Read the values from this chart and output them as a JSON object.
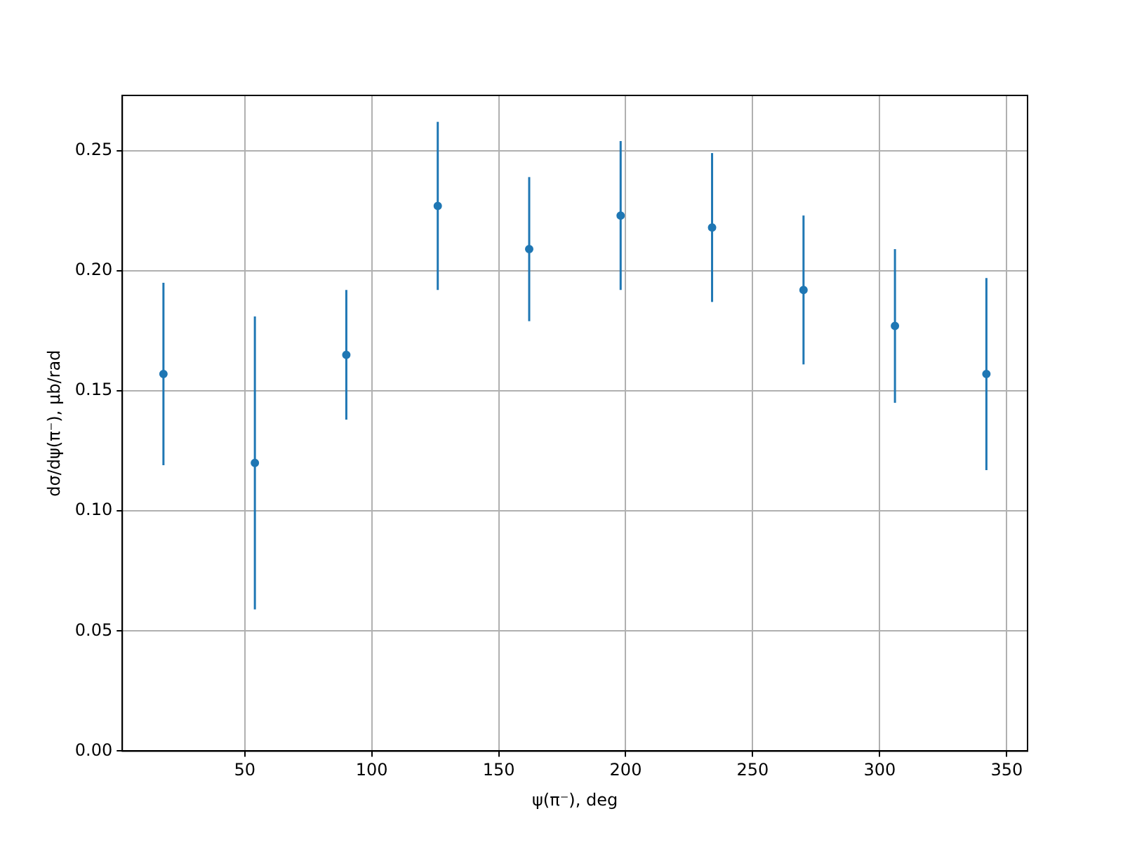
{
  "chart_data": {
    "type": "scatter",
    "xlabel": "ψ(π⁻), deg",
    "ylabel": "dσ/dψ(π⁻), μb/rad",
    "x": [
      18,
      54,
      90,
      126,
      162,
      198,
      234,
      270,
      306,
      342
    ],
    "series": [
      {
        "color": "#1f77b4",
        "values": [
          0.157,
          0.12,
          0.165,
          0.227,
          0.209,
          0.223,
          0.218,
          0.192,
          0.177,
          0.157
        ],
        "errors": [
          0.038,
          0.061,
          0.027,
          0.035,
          0.03,
          0.031,
          0.031,
          0.031,
          0.032,
          0.04
        ]
      }
    ],
    "xlim": [
      1.8,
      358.2
    ],
    "xticks": [
      50,
      100,
      150,
      200,
      250,
      300,
      350
    ],
    "ylim": [
      0,
      0.273
    ],
    "yticks": [
      {
        "value": 0,
        "label": "0.00"
      },
      {
        "value": 0.05,
        "label": "0.05"
      },
      {
        "value": 0.1,
        "label": "0.10"
      },
      {
        "value": 0.15,
        "label": "0.15"
      },
      {
        "value": 0.2,
        "label": "0.20"
      },
      {
        "value": 0.25,
        "label": "0.25"
      }
    ],
    "grid": true,
    "marker": "circle",
    "legend": false
  }
}
